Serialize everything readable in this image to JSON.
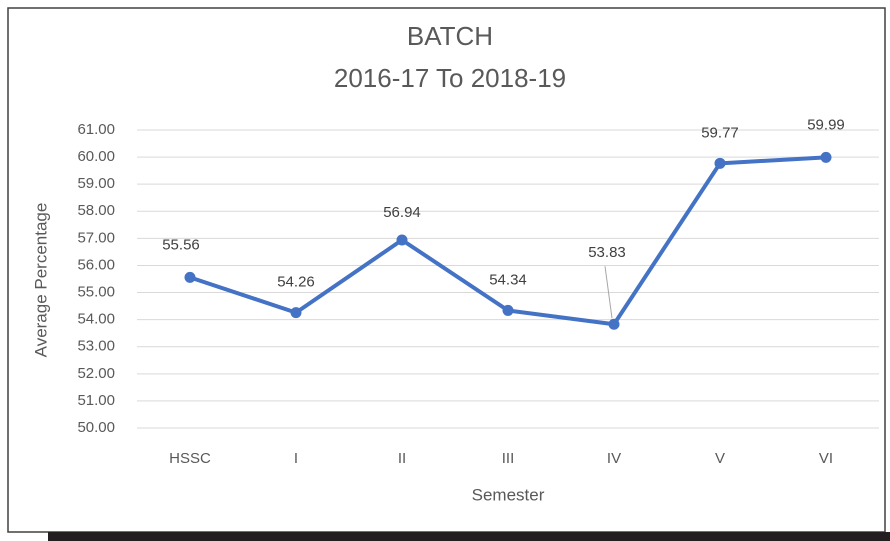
{
  "chart_data": {
    "type": "line",
    "title": "BATCH",
    "subtitle": "2016-17 To 2018-19",
    "x_label": "Semester",
    "y_label": "Average Percentage",
    "categories": [
      "HSSC",
      "I",
      "II",
      "III",
      "IV",
      "V",
      "VI"
    ],
    "series": [
      {
        "name": "Average Percentage",
        "color": "#4472c4",
        "values": [
          55.56,
          54.26,
          56.94,
          54.34,
          53.83,
          59.77,
          59.99
        ]
      }
    ],
    "ylim": [
      50,
      61
    ],
    "yticks": [
      {
        "value": 50,
        "label": "50.00"
      },
      {
        "value": 51,
        "label": "51.00"
      },
      {
        "value": 52,
        "label": "52.00"
      },
      {
        "value": 53,
        "label": "53.00"
      },
      {
        "value": 54,
        "label": "54.00"
      },
      {
        "value": 55,
        "label": "55.00"
      },
      {
        "value": 56,
        "label": "56.00"
      },
      {
        "value": 57,
        "label": "57.00"
      },
      {
        "value": 58,
        "label": "58.00"
      },
      {
        "value": 59,
        "label": "59.00"
      },
      {
        "value": 60,
        "label": "60.00"
      },
      {
        "value": 61,
        "label": "61.00"
      }
    ],
    "grid": true,
    "data_labels": true
  }
}
